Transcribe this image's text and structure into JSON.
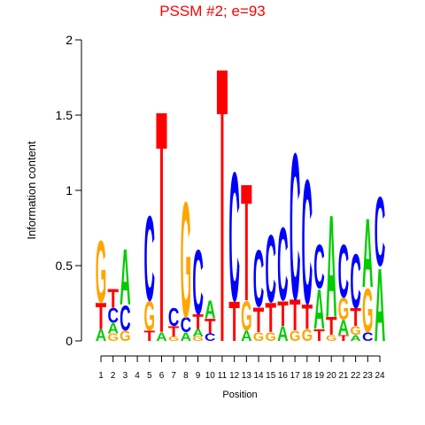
{
  "chart_data": {
    "type": "logo",
    "title": "PSSM #2; e=93",
    "y_label": "Information content",
    "x_label": "Position",
    "ylim": [
      0,
      2
    ],
    "yticks": [
      0,
      0.5,
      1,
      1.5,
      2
    ],
    "xticks": [
      1,
      2,
      3,
      4,
      5,
      6,
      7,
      8,
      9,
      10,
      11,
      12,
      13,
      14,
      15,
      16,
      17,
      18,
      19,
      20,
      21,
      22,
      23,
      24
    ],
    "colors": {
      "A": "#00cc00",
      "C": "#0000ff",
      "G": "#ffa500",
      "T": "#ff0000"
    },
    "stacks": [
      [
        {
          "letter": "A",
          "value": 0.08
        },
        {
          "letter": "T",
          "value": 0.18
        },
        {
          "letter": "G",
          "value": 0.42
        }
      ],
      [
        {
          "letter": "G",
          "value": 0.05
        },
        {
          "letter": "A",
          "value": 0.07
        },
        {
          "letter": "C",
          "value": 0.1
        },
        {
          "letter": "T",
          "value": 0.13
        }
      ],
      [
        {
          "letter": "G",
          "value": 0.07
        },
        {
          "letter": "C",
          "value": 0.17
        },
        {
          "letter": "A",
          "value": 0.38
        }
      ],
      [],
      [
        {
          "letter": "T",
          "value": 0.07
        },
        {
          "letter": "G",
          "value": 0.2
        },
        {
          "letter": "C",
          "value": 0.58
        }
      ],
      [
        {
          "letter": "A",
          "value": 0.06
        },
        {
          "letter": "T",
          "value": 1.52
        }
      ],
      [
        {
          "letter": "G",
          "value": 0.03
        },
        {
          "letter": "T",
          "value": 0.07
        },
        {
          "letter": "C",
          "value": 0.12
        }
      ],
      [
        {
          "letter": "A",
          "value": 0.06
        },
        {
          "letter": "C",
          "value": 0.1
        },
        {
          "letter": "G",
          "value": 0.79
        }
      ],
      [
        {
          "letter": "G",
          "value": 0.03
        },
        {
          "letter": "A",
          "value": 0.05
        },
        {
          "letter": "T",
          "value": 0.1
        },
        {
          "letter": "C",
          "value": 0.44
        }
      ],
      [
        {
          "letter": "C",
          "value": 0.05
        },
        {
          "letter": "T",
          "value": 0.1
        },
        {
          "letter": "A",
          "value": 0.12
        }
      ],
      [
        {
          "letter": "T",
          "value": 1.88
        }
      ],
      [
        {
          "letter": "T",
          "value": 0.27
        },
        {
          "letter": "C",
          "value": 0.88
        }
      ],
      [
        {
          "letter": "A",
          "value": 0.07
        },
        {
          "letter": "G",
          "value": 0.2
        },
        {
          "letter": "T",
          "value": 0.8
        }
      ],
      [
        {
          "letter": "G",
          "value": 0.06
        },
        {
          "letter": "T",
          "value": 0.17
        },
        {
          "letter": "C",
          "value": 0.39
        }
      ],
      [
        {
          "letter": "G",
          "value": 0.06
        },
        {
          "letter": "T",
          "value": 0.2
        },
        {
          "letter": "C",
          "value": 0.46
        }
      ],
      [
        {
          "letter": "A",
          "value": 0.1
        },
        {
          "letter": "T",
          "value": 0.17
        },
        {
          "letter": "C",
          "value": 0.5
        }
      ],
      [
        {
          "letter": "G",
          "value": 0.07
        },
        {
          "letter": "T",
          "value": 0.21
        },
        {
          "letter": "C",
          "value": 1.0
        }
      ],
      [
        {
          "letter": "G",
          "value": 0.08
        },
        {
          "letter": "T",
          "value": 0.17
        },
        {
          "letter": "C",
          "value": 0.85
        }
      ],
      [
        {
          "letter": "T",
          "value": 0.08
        },
        {
          "letter": "A",
          "value": 0.27
        },
        {
          "letter": "C",
          "value": 0.3
        }
      ],
      [
        {
          "letter": "G",
          "value": 0.04
        },
        {
          "letter": "T",
          "value": 0.12
        },
        {
          "letter": "A",
          "value": 0.7
        }
      ],
      [
        {
          "letter": "T",
          "value": 0.04
        },
        {
          "letter": "A",
          "value": 0.1
        },
        {
          "letter": "G",
          "value": 0.15
        },
        {
          "letter": "C",
          "value": 0.36
        }
      ],
      [
        {
          "letter": "A",
          "value": 0.04
        },
        {
          "letter": "G",
          "value": 0.06
        },
        {
          "letter": "T",
          "value": 0.12
        },
        {
          "letter": "C",
          "value": 0.37
        }
      ],
      [
        {
          "letter": "C",
          "value": 0.06
        },
        {
          "letter": "G",
          "value": 0.3
        },
        {
          "letter": "A",
          "value": 0.47
        }
      ],
      [
        {
          "letter": "A",
          "value": 0.5
        },
        {
          "letter": "C",
          "value": 0.47
        }
      ]
    ]
  }
}
